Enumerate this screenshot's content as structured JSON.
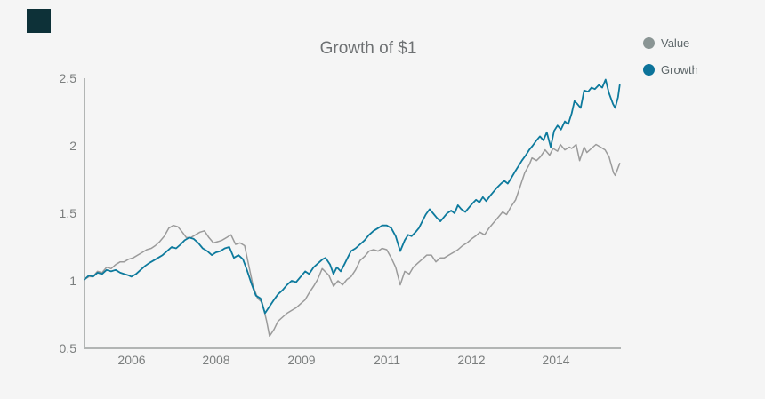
{
  "page": {
    "background": "#f5f5f5"
  },
  "brand_mark": {
    "color": "#0d3138"
  },
  "legend": {
    "position": "top-right"
  },
  "chart_data": {
    "type": "line",
    "title": "Growth of $1",
    "grid": false,
    "axis_color": "#b2b5b4",
    "x_axis": {
      "range": [
        2005.17,
        2014.65
      ],
      "ticks": [
        2006,
        2007.5,
        2009,
        2010.5,
        2012,
        2013.5
      ],
      "tick_labels": [
        "2006",
        "2008",
        "2009",
        "2011",
        "2012",
        "2014"
      ]
    },
    "y_axis": {
      "range": [
        0.5,
        2.5
      ],
      "ticks": [
        0.5,
        1,
        1.5,
        2,
        2.5
      ],
      "tick_labels": [
        "0.5",
        "1",
        "1.5",
        "2",
        "2.5"
      ]
    },
    "series": [
      {
        "name": "Value",
        "color": "#9b9b9b",
        "marker_color": "#8a9594",
        "stroke_width": 1.5,
        "points": [
          [
            2005.17,
            1.01
          ],
          [
            2005.25,
            1.03
          ],
          [
            2005.32,
            1.03
          ],
          [
            2005.4,
            1.07
          ],
          [
            2005.48,
            1.06
          ],
          [
            2005.56,
            1.1
          ],
          [
            2005.64,
            1.09
          ],
          [
            2005.72,
            1.12
          ],
          [
            2005.8,
            1.14
          ],
          [
            2005.87,
            1.14
          ],
          [
            2005.95,
            1.16
          ],
          [
            2006.03,
            1.17
          ],
          [
            2006.11,
            1.19
          ],
          [
            2006.19,
            1.21
          ],
          [
            2006.27,
            1.23
          ],
          [
            2006.35,
            1.24
          ],
          [
            2006.42,
            1.26
          ],
          [
            2006.5,
            1.29
          ],
          [
            2006.58,
            1.33
          ],
          [
            2006.66,
            1.39
          ],
          [
            2006.74,
            1.41
          ],
          [
            2006.82,
            1.4
          ],
          [
            2006.9,
            1.36
          ],
          [
            2006.97,
            1.32
          ],
          [
            2007.05,
            1.32
          ],
          [
            2007.13,
            1.34
          ],
          [
            2007.21,
            1.36
          ],
          [
            2007.29,
            1.37
          ],
          [
            2007.37,
            1.32
          ],
          [
            2007.45,
            1.28
          ],
          [
            2007.53,
            1.29
          ],
          [
            2007.6,
            1.3
          ],
          [
            2007.68,
            1.32
          ],
          [
            2007.76,
            1.34
          ],
          [
            2007.84,
            1.27
          ],
          [
            2007.92,
            1.28
          ],
          [
            2008.0,
            1.26
          ],
          [
            2008.08,
            1.1
          ],
          [
            2008.15,
            0.96
          ],
          [
            2008.23,
            0.87
          ],
          [
            2008.31,
            0.84
          ],
          [
            2008.39,
            0.7
          ],
          [
            2008.44,
            0.59
          ],
          [
            2008.52,
            0.64
          ],
          [
            2008.59,
            0.7
          ],
          [
            2008.67,
            0.73
          ],
          [
            2008.75,
            0.76
          ],
          [
            2008.83,
            0.78
          ],
          [
            2008.91,
            0.8
          ],
          [
            2008.99,
            0.83
          ],
          [
            2009.07,
            0.86
          ],
          [
            2009.14,
            0.91
          ],
          [
            2009.22,
            0.96
          ],
          [
            2009.29,
            1.01
          ],
          [
            2009.37,
            1.09
          ],
          [
            2009.49,
            1.04
          ],
          [
            2009.57,
            0.96
          ],
          [
            2009.65,
            1.0
          ],
          [
            2009.73,
            0.97
          ],
          [
            2009.81,
            1.01
          ],
          [
            2009.88,
            1.03
          ],
          [
            2009.96,
            1.08
          ],
          [
            2010.04,
            1.15
          ],
          [
            2010.12,
            1.18
          ],
          [
            2010.2,
            1.22
          ],
          [
            2010.28,
            1.23
          ],
          [
            2010.36,
            1.22
          ],
          [
            2010.43,
            1.24
          ],
          [
            2010.51,
            1.23
          ],
          [
            2010.59,
            1.17
          ],
          [
            2010.67,
            1.1
          ],
          [
            2010.75,
            0.97
          ],
          [
            2010.83,
            1.07
          ],
          [
            2010.91,
            1.05
          ],
          [
            2010.98,
            1.1
          ],
          [
            2011.06,
            1.13
          ],
          [
            2011.14,
            1.16
          ],
          [
            2011.22,
            1.19
          ],
          [
            2011.3,
            1.19
          ],
          [
            2011.38,
            1.14
          ],
          [
            2011.46,
            1.17
          ],
          [
            2011.53,
            1.17
          ],
          [
            2011.61,
            1.19
          ],
          [
            2011.69,
            1.21
          ],
          [
            2011.77,
            1.23
          ],
          [
            2011.85,
            1.26
          ],
          [
            2011.93,
            1.28
          ],
          [
            2012.01,
            1.31
          ],
          [
            2012.08,
            1.33
          ],
          [
            2012.16,
            1.36
          ],
          [
            2012.24,
            1.34
          ],
          [
            2012.32,
            1.39
          ],
          [
            2012.4,
            1.43
          ],
          [
            2012.48,
            1.47
          ],
          [
            2012.56,
            1.51
          ],
          [
            2012.63,
            1.49
          ],
          [
            2012.71,
            1.55
          ],
          [
            2012.79,
            1.6
          ],
          [
            2012.87,
            1.7
          ],
          [
            2012.95,
            1.8
          ],
          [
            2013.03,
            1.86
          ],
          [
            2013.08,
            1.91
          ],
          [
            2013.16,
            1.89
          ],
          [
            2013.23,
            1.92
          ],
          [
            2013.31,
            1.97
          ],
          [
            2013.39,
            1.93
          ],
          [
            2013.45,
            1.98
          ],
          [
            2013.53,
            1.96
          ],
          [
            2013.58,
            2.01
          ],
          [
            2013.66,
            1.97
          ],
          [
            2013.74,
            1.99
          ],
          [
            2013.78,
            1.98
          ],
          [
            2013.86,
            2.01
          ],
          [
            2013.92,
            1.89
          ],
          [
            2014.0,
            1.99
          ],
          [
            2014.05,
            1.95
          ],
          [
            2014.13,
            1.98
          ],
          [
            2014.21,
            2.01
          ],
          [
            2014.29,
            1.99
          ],
          [
            2014.37,
            1.97
          ],
          [
            2014.44,
            1.92
          ],
          [
            2014.52,
            1.8
          ],
          [
            2014.55,
            1.78
          ],
          [
            2014.63,
            1.87
          ]
        ]
      },
      {
        "name": "Growth",
        "color": "#0d7a9d",
        "marker_color": "#0c739a",
        "stroke_width": 1.8,
        "points": [
          [
            2005.17,
            1.01
          ],
          [
            2005.25,
            1.04
          ],
          [
            2005.32,
            1.03
          ],
          [
            2005.4,
            1.06
          ],
          [
            2005.48,
            1.05
          ],
          [
            2005.56,
            1.08
          ],
          [
            2005.64,
            1.07
          ],
          [
            2005.72,
            1.08
          ],
          [
            2005.8,
            1.06
          ],
          [
            2005.87,
            1.05
          ],
          [
            2005.95,
            1.04
          ],
          [
            2006.0,
            1.03
          ],
          [
            2006.08,
            1.05
          ],
          [
            2006.16,
            1.08
          ],
          [
            2006.24,
            1.11
          ],
          [
            2006.31,
            1.13
          ],
          [
            2006.39,
            1.15
          ],
          [
            2006.47,
            1.17
          ],
          [
            2006.55,
            1.19
          ],
          [
            2006.63,
            1.22
          ],
          [
            2006.71,
            1.25
          ],
          [
            2006.79,
            1.24
          ],
          [
            2006.87,
            1.27
          ],
          [
            2006.94,
            1.3
          ],
          [
            2007.02,
            1.32
          ],
          [
            2007.1,
            1.31
          ],
          [
            2007.18,
            1.28
          ],
          [
            2007.26,
            1.24
          ],
          [
            2007.34,
            1.22
          ],
          [
            2007.42,
            1.19
          ],
          [
            2007.49,
            1.21
          ],
          [
            2007.57,
            1.22
          ],
          [
            2007.65,
            1.24
          ],
          [
            2007.73,
            1.25
          ],
          [
            2007.81,
            1.17
          ],
          [
            2007.89,
            1.19
          ],
          [
            2007.97,
            1.16
          ],
          [
            2008.04,
            1.08
          ],
          [
            2008.12,
            0.98
          ],
          [
            2008.2,
            0.89
          ],
          [
            2008.28,
            0.87
          ],
          [
            2008.36,
            0.76
          ],
          [
            2008.44,
            0.81
          ],
          [
            2008.52,
            0.86
          ],
          [
            2008.59,
            0.9
          ],
          [
            2008.67,
            0.93
          ],
          [
            2008.75,
            0.97
          ],
          [
            2008.83,
            1.0
          ],
          [
            2008.91,
            0.99
          ],
          [
            2008.99,
            1.03
          ],
          [
            2009.07,
            1.07
          ],
          [
            2009.14,
            1.05
          ],
          [
            2009.22,
            1.1
          ],
          [
            2009.3,
            1.13
          ],
          [
            2009.38,
            1.16
          ],
          [
            2009.43,
            1.17
          ],
          [
            2009.51,
            1.12
          ],
          [
            2009.57,
            1.05
          ],
          [
            2009.63,
            1.1
          ],
          [
            2009.7,
            1.07
          ],
          [
            2009.76,
            1.12
          ],
          [
            2009.82,
            1.17
          ],
          [
            2009.88,
            1.22
          ],
          [
            2009.96,
            1.24
          ],
          [
            2010.04,
            1.27
          ],
          [
            2010.12,
            1.3
          ],
          [
            2010.2,
            1.34
          ],
          [
            2010.28,
            1.37
          ],
          [
            2010.36,
            1.39
          ],
          [
            2010.43,
            1.41
          ],
          [
            2010.51,
            1.41
          ],
          [
            2010.59,
            1.39
          ],
          [
            2010.67,
            1.33
          ],
          [
            2010.75,
            1.22
          ],
          [
            2010.83,
            1.3
          ],
          [
            2010.89,
            1.34
          ],
          [
            2010.95,
            1.33
          ],
          [
            2011.02,
            1.36
          ],
          [
            2011.08,
            1.39
          ],
          [
            2011.14,
            1.44
          ],
          [
            2011.2,
            1.49
          ],
          [
            2011.27,
            1.53
          ],
          [
            2011.33,
            1.5
          ],
          [
            2011.39,
            1.47
          ],
          [
            2011.46,
            1.44
          ],
          [
            2011.52,
            1.47
          ],
          [
            2011.58,
            1.5
          ],
          [
            2011.65,
            1.52
          ],
          [
            2011.71,
            1.5
          ],
          [
            2011.77,
            1.56
          ],
          [
            2011.83,
            1.53
          ],
          [
            2011.9,
            1.51
          ],
          [
            2011.96,
            1.54
          ],
          [
            2012.02,
            1.57
          ],
          [
            2012.09,
            1.6
          ],
          [
            2012.15,
            1.58
          ],
          [
            2012.21,
            1.62
          ],
          [
            2012.27,
            1.59
          ],
          [
            2012.34,
            1.63
          ],
          [
            2012.4,
            1.66
          ],
          [
            2012.46,
            1.69
          ],
          [
            2012.53,
            1.72
          ],
          [
            2012.59,
            1.74
          ],
          [
            2012.65,
            1.72
          ],
          [
            2012.71,
            1.76
          ],
          [
            2012.78,
            1.81
          ],
          [
            2012.84,
            1.85
          ],
          [
            2012.9,
            1.89
          ],
          [
            2012.97,
            1.93
          ],
          [
            2013.03,
            1.97
          ],
          [
            2013.09,
            2.0
          ],
          [
            2013.16,
            2.04
          ],
          [
            2013.22,
            2.07
          ],
          [
            2013.28,
            2.04
          ],
          [
            2013.34,
            2.1
          ],
          [
            2013.41,
            1.99
          ],
          [
            2013.47,
            2.11
          ],
          [
            2013.53,
            2.15
          ],
          [
            2013.59,
            2.12
          ],
          [
            2013.66,
            2.18
          ],
          [
            2013.72,
            2.16
          ],
          [
            2013.78,
            2.24
          ],
          [
            2013.83,
            2.33
          ],
          [
            2013.88,
            2.31
          ],
          [
            2013.94,
            2.28
          ],
          [
            2014.0,
            2.41
          ],
          [
            2014.07,
            2.4
          ],
          [
            2014.13,
            2.43
          ],
          [
            2014.19,
            2.42
          ],
          [
            2014.26,
            2.45
          ],
          [
            2014.32,
            2.43
          ],
          [
            2014.38,
            2.49
          ],
          [
            2014.44,
            2.39
          ],
          [
            2014.51,
            2.31
          ],
          [
            2014.55,
            2.28
          ],
          [
            2014.6,
            2.36
          ],
          [
            2014.63,
            2.45
          ]
        ]
      }
    ]
  }
}
